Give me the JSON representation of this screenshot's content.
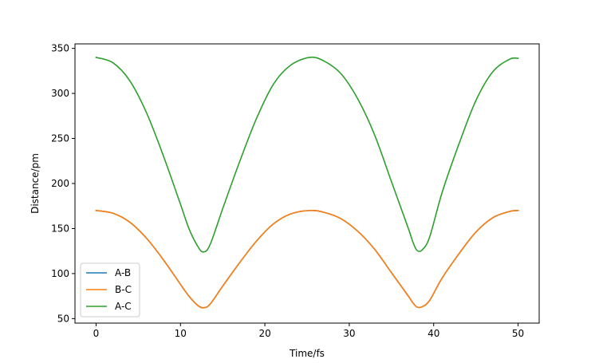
{
  "chart_data": {
    "type": "line",
    "title": "",
    "xlabel": "Time/fs",
    "ylabel": "Distance/pm",
    "xlim": [
      -2.5,
      52.5
    ],
    "ylim": [
      45,
      355
    ],
    "xticks": [
      0,
      10,
      20,
      30,
      40,
      50
    ],
    "yticks": [
      50,
      100,
      150,
      200,
      250,
      300,
      350
    ],
    "xtick_labels": [
      "0",
      "10",
      "20",
      "30",
      "40",
      "50"
    ],
    "ytick_labels": [
      "50",
      "100",
      "150",
      "200",
      "250",
      "300",
      "350"
    ],
    "grid": false,
    "legend_position": "lower-left",
    "x": [
      0,
      2,
      4,
      6,
      8,
      10,
      11,
      12,
      12.7,
      13.5,
      15,
      17,
      19,
      21,
      23,
      25.3,
      27,
      29,
      31,
      33,
      35,
      37,
      37.5,
      38,
      38.6,
      39.5,
      41,
      43,
      45,
      47,
      49,
      50
    ],
    "series": [
      {
        "name": "A-B",
        "color": "#1f77b4",
        "values": [
          170,
          167,
          157,
          139,
          115,
          88,
          75,
          65,
          62,
          66,
          86,
          112,
          136,
          155,
          166,
          170,
          168,
          161,
          147,
          127,
          101,
          75,
          68,
          63,
          63,
          70,
          95,
          122,
          146,
          162,
          169,
          170
        ]
      },
      {
        "name": "B-C",
        "color": "#ff7f0e",
        "values": [
          170,
          167,
          157,
          139,
          115,
          88,
          75,
          65,
          62,
          66,
          86,
          112,
          136,
          155,
          166,
          170,
          168,
          161,
          147,
          127,
          101,
          75,
          68,
          63,
          63,
          70,
          95,
          122,
          146,
          162,
          169,
          170
        ]
      },
      {
        "name": "A-C",
        "color": "#2ca02c",
        "values": [
          340,
          334,
          314,
          278,
          230,
          177,
          150,
          131,
          124,
          132,
          172,
          224,
          272,
          310,
          331,
          340,
          336,
          322,
          294,
          254,
          202,
          150,
          136,
          126,
          126,
          140,
          190,
          244,
          292,
          324,
          338,
          339
        ]
      }
    ]
  }
}
